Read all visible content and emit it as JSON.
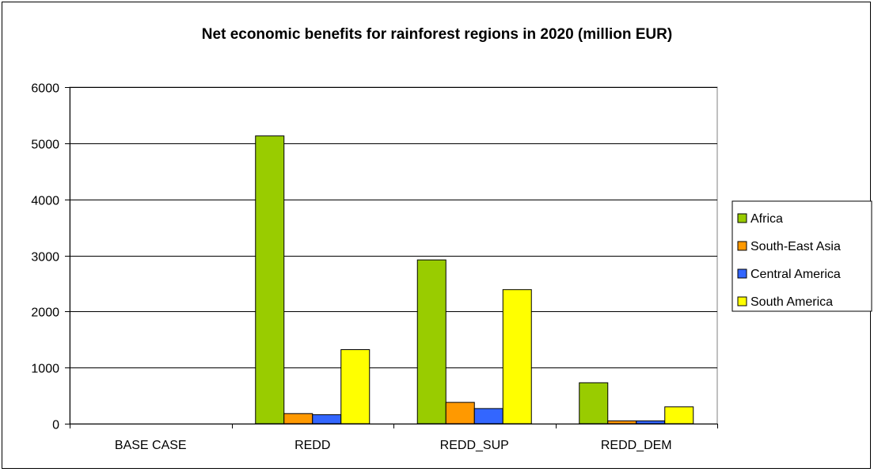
{
  "chart_data": {
    "type": "bar",
    "title": "Net economic benefits for rainforest regions in 2020 (million EUR)",
    "xlabel": "",
    "ylabel": "",
    "categories": [
      "BASE CASE",
      "REDD",
      "REDD_SUP",
      "REDD_DEM"
    ],
    "ylim": [
      0,
      6000
    ],
    "yticks": [
      0,
      1000,
      2000,
      3000,
      4000,
      5000,
      6000
    ],
    "grid": true,
    "legend_position": "right",
    "series": [
      {
        "name": "Africa",
        "color": "#99cc00",
        "values": [
          0,
          5130,
          2920,
          730
        ]
      },
      {
        "name": "South-East Asia",
        "color": "#ff9900",
        "values": [
          0,
          180,
          380,
          50
        ]
      },
      {
        "name": "Central America",
        "color": "#3366ff",
        "values": [
          0,
          160,
          270,
          50
        ]
      },
      {
        "name": "South America",
        "color": "#ffff00",
        "values": [
          0,
          1320,
          2390,
          300
        ]
      }
    ]
  }
}
